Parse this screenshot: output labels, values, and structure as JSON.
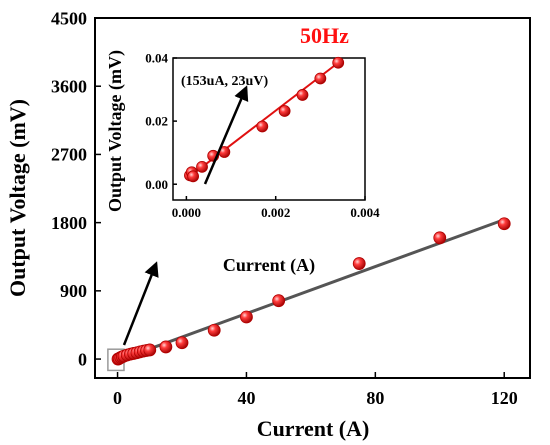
{
  "colors": {
    "marker_fill": "#ff2a2a",
    "marker_edge": "#b00000",
    "fit_main": "#555555",
    "fit_inset": "#e01010",
    "freq_label": "#ff1010",
    "zoom_box": "#999999"
  },
  "chart_data": [
    {
      "type": "scatter",
      "role": "main",
      "title": "",
      "frequency_label": "50Hz",
      "xlabel": "Current (A)",
      "ylabel": "Output Voltage (mV)",
      "xlim": [
        -7,
        128
      ],
      "ylim": [
        -250,
        4500
      ],
      "xticks": [
        0,
        40,
        80,
        120
      ],
      "yticks": [
        0,
        900,
        1800,
        2700,
        3600,
        4500
      ],
      "series": [
        {
          "x": [
            0.15,
            0.5,
            1,
            1.5,
            2,
            3,
            4,
            5,
            6,
            7,
            8,
            9,
            10,
            15,
            20,
            30,
            40,
            50,
            75,
            100,
            120
          ],
          "y": [
            0,
            7,
            20,
            30,
            39,
            53,
            65,
            74,
            83,
            95,
            105,
            113,
            120,
            160,
            215,
            380,
            555,
            770,
            1260,
            1600,
            1785
          ]
        }
      ],
      "fit_line": {
        "x": [
          0,
          120
        ],
        "y": [
          -20,
          1840
        ]
      },
      "zoom_box": {
        "x": [
          -3,
          2
        ],
        "y": [
          -150,
          130
        ]
      },
      "grid": false
    },
    {
      "type": "scatter",
      "role": "inset",
      "title": "",
      "xlabel": "Current (A)",
      "ylabel": "Output Voltage (mV)",
      "xlim": [
        -0.0003,
        0.004
      ],
      "ylim": [
        -0.005,
        0.04
      ],
      "xticks": [
        0.0,
        0.002,
        0.004
      ],
      "xtick_labels": [
        "0.000",
        "0.002",
        "0.004"
      ],
      "yticks": [
        0.0,
        0.02,
        0.04
      ],
      "ytick_labels": [
        "0.00",
        "0.02",
        "0.04"
      ],
      "series": [
        {
          "x": [
            8e-05,
            0.00012,
            0.00015,
            0.00035,
            0.0006,
            0.00085,
            0.0017,
            0.0022,
            0.0026,
            0.003,
            0.0034
          ],
          "y": [
            0.0028,
            0.0038,
            0.0025,
            0.0055,
            0.009,
            0.0102,
            0.0183,
            0.0232,
            0.0283,
            0.0335,
            0.0385
          ]
        }
      ],
      "fit_line": {
        "x": [
          5e-05,
          0.0034
        ],
        "y": [
          0.0022,
          0.0385
        ]
      },
      "annotation": "(153uA, 23uV)",
      "grid": false
    }
  ]
}
